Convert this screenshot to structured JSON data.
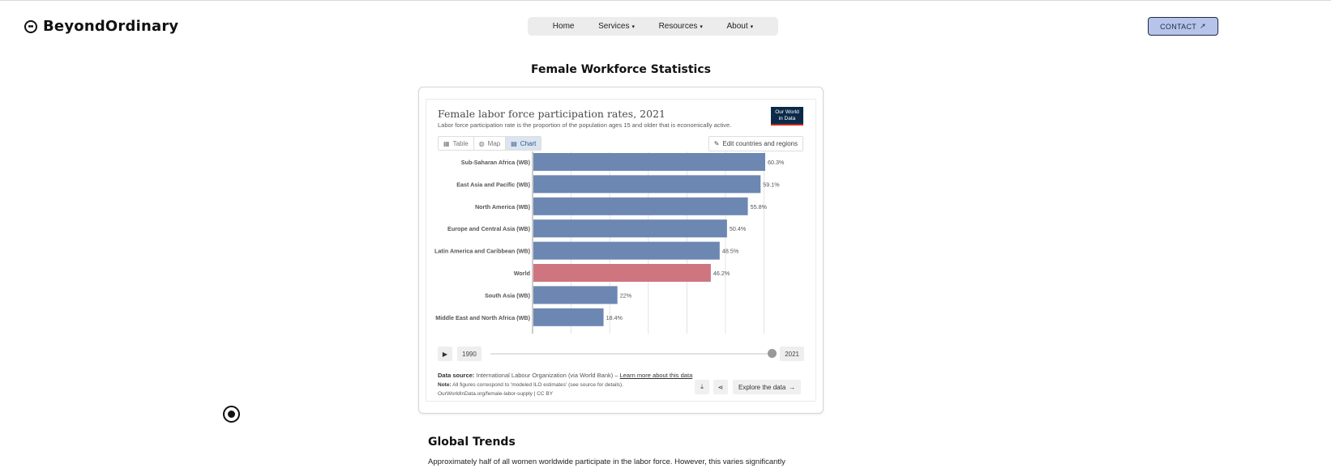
{
  "header": {
    "logo_text": "BeyondOrdinary",
    "logo_icon": "face-icon",
    "nav": [
      {
        "label": "Home",
        "has_caret": false
      },
      {
        "label": "Services",
        "has_caret": true
      },
      {
        "label": "Resources",
        "has_caret": true
      },
      {
        "label": "About",
        "has_caret": true
      }
    ],
    "caret": "▾",
    "contact_label": "CONTACT",
    "contact_icon": "↗",
    "contact_bg": "#b7c4ea"
  },
  "page_title": "Female Workforce Statistics",
  "embed": {
    "title": "Female labor force participation rates, 2021",
    "subtitle": "Labor force participation rate is the proportion of the population ages 15 and older that is economically active.",
    "logo_line1": "Our World",
    "logo_line2": "in Data",
    "tabs": [
      {
        "label": "Table",
        "icon": "▦"
      },
      {
        "label": "Map",
        "icon": "◍"
      },
      {
        "label": "Chart",
        "icon": "▤"
      }
    ],
    "edit_label": "Edit countries and regions",
    "edit_icon": "✎",
    "play_icon": "▶",
    "year_start": "1990",
    "year_end": "2021",
    "source_label": "Data source:",
    "source_text": "International Labour Organization (via World Bank) –",
    "source_link": "Learn more about this data",
    "note_label": "Note:",
    "note_text": "All figures correspond to 'modeled ILO estimates' (see source for details).",
    "url_text": "OurWorldInData.org/female-labor-supply | CC BY",
    "download_icon": "⤓",
    "share_icon": "⋖",
    "explore_label": "Explore the data",
    "explore_icon": "→"
  },
  "chart_data": {
    "type": "bar",
    "orientation": "horizontal",
    "title": "Female labor force participation rates, 2021",
    "categories": [
      "Sub-Saharan Africa (WB)",
      "East Asia and Pacific (WB)",
      "North America (WB)",
      "Europe and Central Asia (WB)",
      "Latin America and Caribbean (WB)",
      "World",
      "South Asia (WB)",
      "Middle East and North Africa (WB)"
    ],
    "values": [
      60.3,
      59.1,
      55.8,
      50.4,
      48.5,
      46.2,
      22,
      18.4
    ],
    "value_labels": [
      "60.3%",
      "59.1%",
      "55.8%",
      "50.4%",
      "48.5%",
      "46.2%",
      "22%",
      "18.4%"
    ],
    "highlight": "World",
    "colors": {
      "default": "#6d87b3",
      "highlight": "#cf7580"
    },
    "xlim": [
      0,
      60.3
    ],
    "grid": true,
    "unit": "%"
  },
  "section": {
    "title": "Global Trends",
    "text": "Approximately half of all women worldwide participate in the labor force. However, this varies significantly"
  },
  "misc": {
    "record_icon": "record-icon"
  }
}
